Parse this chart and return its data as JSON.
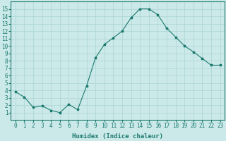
{
  "x": [
    0,
    1,
    2,
    3,
    4,
    5,
    6,
    7,
    8,
    9,
    10,
    11,
    12,
    13,
    14,
    15,
    16,
    17,
    18,
    19,
    20,
    21,
    22,
    23
  ],
  "y": [
    3.8,
    3.1,
    1.7,
    1.9,
    1.3,
    1.0,
    2.1,
    1.4,
    4.6,
    8.4,
    10.2,
    11.1,
    12.0,
    13.8,
    15.0,
    15.0,
    14.2,
    12.4,
    11.2,
    10.0,
    9.2,
    8.3,
    7.4,
    7.4
  ],
  "line_color": "#1a7a6e",
  "marker": "*",
  "marker_size": 2.5,
  "bg_color": "#cce9e9",
  "grid_color": "#aad4d4",
  "xlabel": "Humidex (Indice chaleur)",
  "xlim": [
    -0.5,
    23.5
  ],
  "ylim": [
    0,
    16
  ],
  "xticks": [
    0,
    1,
    2,
    3,
    4,
    5,
    6,
    7,
    8,
    9,
    10,
    11,
    12,
    13,
    14,
    15,
    16,
    17,
    18,
    19,
    20,
    21,
    22,
    23
  ],
  "yticks": [
    1,
    2,
    3,
    4,
    5,
    6,
    7,
    8,
    9,
    10,
    11,
    12,
    13,
    14,
    15
  ],
  "tick_color": "#1a7a6e",
  "label_fontsize": 5.5,
  "axis_fontsize": 6.5
}
